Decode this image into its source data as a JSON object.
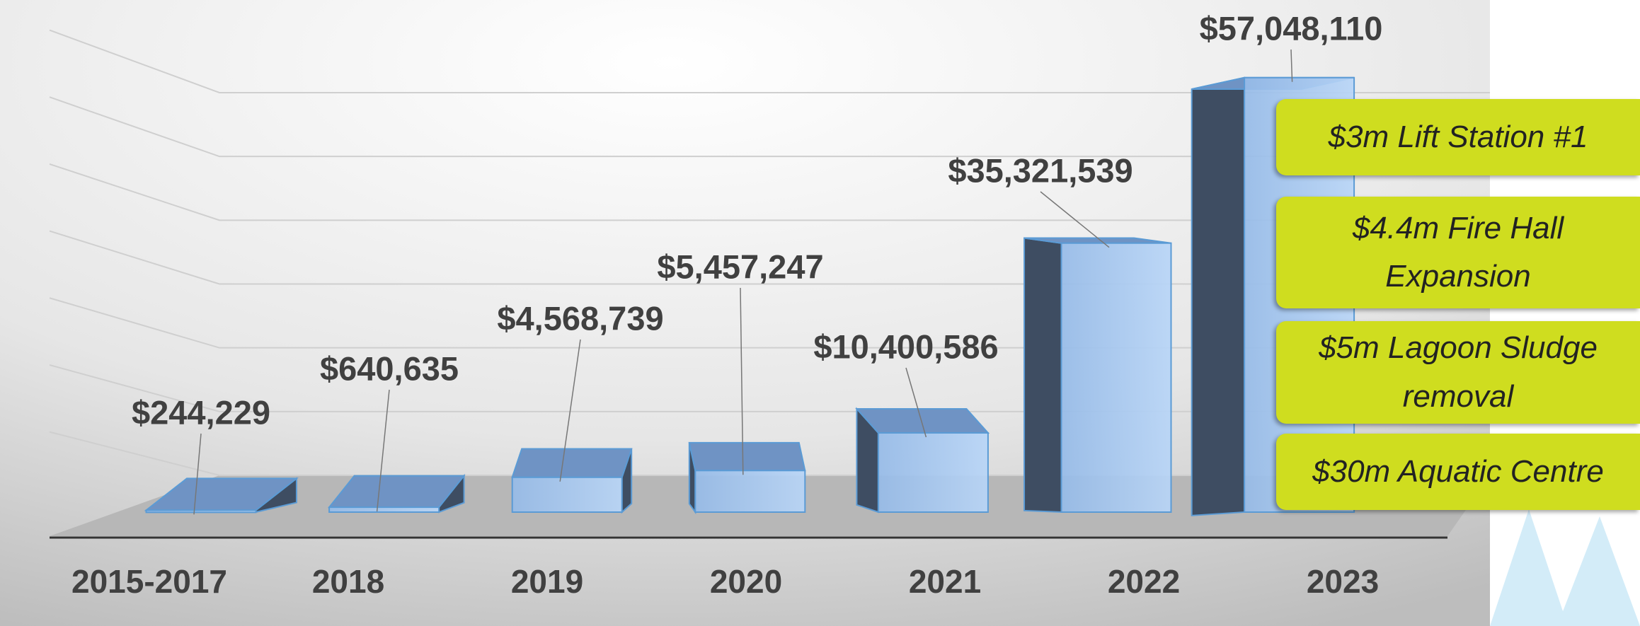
{
  "chart_data": {
    "type": "bar3d",
    "categories": [
      "2015-2017",
      "2018",
      "2019",
      "2020",
      "2021",
      "2022",
      "2023"
    ],
    "values": [
      244229,
      640635,
      4568739,
      5457247,
      10400586,
      35321539,
      57048110
    ],
    "value_labels": [
      "$244,229",
      "$640,635",
      "$4,568,739",
      "$5,457,247",
      "$10,400,586",
      "$35,321,539",
      "$57,048,110"
    ],
    "color": "#a9c9f2",
    "ylim": [
      0,
      60000000
    ],
    "yticks": [
      0,
      10000000,
      20000000,
      30000000,
      40000000,
      50000000,
      60000000
    ],
    "grid": true,
    "annotations": [
      "$3m Lift Station #1",
      "$4.4m Fire Hall Expansion",
      "$5m Lagoon Sludge removal",
      "$30m Aquatic Centre"
    ],
    "annotation_color": "#cfdd1f"
  }
}
